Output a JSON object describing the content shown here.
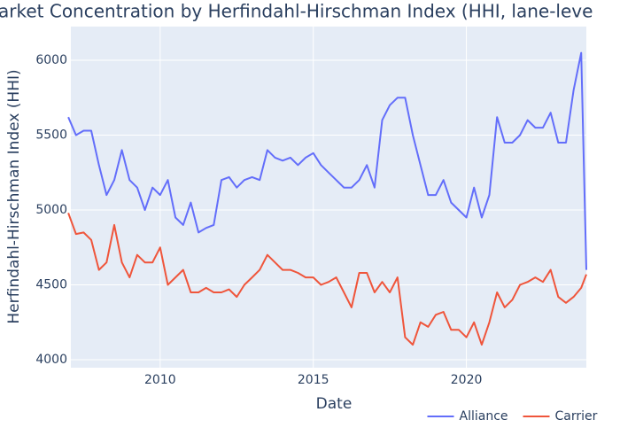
{
  "chart_data": {
    "type": "line",
    "title": "arket Concentration by Herfindahl-Hirschman Index (HHI, lane-leve",
    "x_label": "Date",
    "y_label": "Herfindahl-Hirschman Index (HHI)",
    "x": [
      "2007-01",
      "2007-04",
      "2007-07",
      "2007-10",
      "2008-01",
      "2008-04",
      "2008-07",
      "2008-10",
      "2009-01",
      "2009-04",
      "2009-07",
      "2009-10",
      "2010-01",
      "2010-04",
      "2010-07",
      "2010-10",
      "2011-01",
      "2011-04",
      "2011-07",
      "2011-10",
      "2012-01",
      "2012-04",
      "2012-07",
      "2012-10",
      "2013-01",
      "2013-04",
      "2013-07",
      "2013-10",
      "2014-01",
      "2014-04",
      "2014-07",
      "2014-10",
      "2015-01",
      "2015-04",
      "2015-07",
      "2015-10",
      "2016-01",
      "2016-04",
      "2016-07",
      "2016-10",
      "2017-01",
      "2017-04",
      "2017-07",
      "2017-10",
      "2018-01",
      "2018-04",
      "2018-07",
      "2018-10",
      "2019-01",
      "2019-04",
      "2019-07",
      "2019-10",
      "2020-01",
      "2020-04",
      "2020-07",
      "2020-10",
      "2021-01",
      "2021-04",
      "2021-07",
      "2021-10",
      "2022-01",
      "2022-04",
      "2022-07",
      "2022-10",
      "2023-01",
      "2023-04",
      "2023-07",
      "2023-10",
      "2023-12"
    ],
    "series": [
      {
        "name": "Alliance",
        "color": "#636efa",
        "values": [
          5620,
          5500,
          5530,
          5530,
          5300,
          5100,
          5200,
          5400,
          5200,
          5150,
          5000,
          5150,
          5100,
          5200,
          4950,
          4900,
          5050,
          4850,
          4880,
          4900,
          5200,
          5220,
          5150,
          5200,
          5220,
          5200,
          5400,
          5350,
          5330,
          5350,
          5300,
          5350,
          5380,
          5300,
          5250,
          5200,
          5150,
          5150,
          5200,
          5300,
          5150,
          5600,
          5700,
          5750,
          5750,
          5500,
          5300,
          5100,
          5100,
          5200,
          5050,
          5000,
          4950,
          5150,
          4950,
          5100,
          5620,
          5450,
          5450,
          5500,
          5600,
          5550,
          5550,
          5650,
          5450,
          5450,
          5800,
          6050,
          4600
        ]
      },
      {
        "name": "Carrier",
        "color": "#EF553B",
        "values": [
          4980,
          4840,
          4850,
          4800,
          4600,
          4650,
          4900,
          4650,
          4550,
          4700,
          4650,
          4650,
          4750,
          4500,
          4550,
          4600,
          4450,
          4450,
          4480,
          4450,
          4450,
          4470,
          4420,
          4500,
          4550,
          4600,
          4700,
          4650,
          4600,
          4600,
          4580,
          4550,
          4550,
          4500,
          4520,
          4550,
          4450,
          4350,
          4580,
          4580,
          4450,
          4520,
          4450,
          4550,
          4150,
          4100,
          4250,
          4220,
          4300,
          4320,
          4200,
          4200,
          4150,
          4250,
          4100,
          4250,
          4450,
          4350,
          4400,
          4500,
          4520,
          4550,
          4520,
          4600,
          4420,
          4380,
          4420,
          4480,
          4570
        ]
      }
    ],
    "xlim": [
      "2007-02",
      "2023-12"
    ],
    "xticks": [
      2010,
      2015,
      2020
    ],
    "ylim": [
      3947,
      6225
    ],
    "yticks": [
      4000,
      4500,
      5000,
      5500,
      6000
    ],
    "grid": true,
    "legend": "bottom-right"
  }
}
